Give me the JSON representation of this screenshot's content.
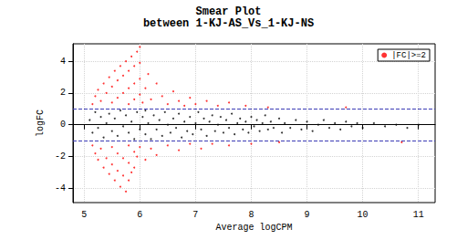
{
  "chart_data": {
    "type": "scatter",
    "title": "Smear Plot",
    "subtitle": "between 1-KJ-AS_Vs_1-KJ-NS",
    "x_label": "Average logCPM",
    "y_label": "logFC",
    "xlim": [
      4.8,
      11.3
    ],
    "ylim": [
      -4.9,
      5.1
    ],
    "xticks": [
      5,
      6,
      7,
      8,
      9,
      10,
      11
    ],
    "yticks": [
      -4,
      -2,
      0,
      2,
      4
    ],
    "grid": true,
    "legend": "top-right",
    "hlines": [
      -1,
      1
    ],
    "series": [
      {
        "color": "#000000",
        "marker": "circle",
        "values": [
          [
            5.1,
            0.3
          ],
          [
            5.15,
            -0.5
          ],
          [
            5.2,
            0.8
          ],
          [
            5.25,
            -0.2
          ],
          [
            5.3,
            0.5
          ],
          [
            5.35,
            -0.8
          ],
          [
            5.4,
            0.1
          ],
          [
            5.45,
            0.7
          ],
          [
            5.5,
            -0.4
          ],
          [
            5.55,
            0.4
          ],
          [
            5.6,
            -0.7
          ],
          [
            5.65,
            0.9
          ],
          [
            5.7,
            -0.1
          ],
          [
            5.75,
            0.6
          ],
          [
            5.8,
            -0.5
          ],
          [
            5.85,
            0.2
          ],
          [
            5.9,
            -0.9
          ],
          [
            5.95,
            0.8
          ],
          [
            6.0,
            -0.3
          ],
          [
            6.05,
            0.5
          ],
          [
            6.1,
            -0.6
          ],
          [
            6.1,
            0.9
          ],
          [
            6.15,
            0.1
          ],
          [
            6.2,
            -0.9
          ],
          [
            6.25,
            0.6
          ],
          [
            6.3,
            -0.3
          ],
          [
            6.35,
            0.3
          ],
          [
            6.4,
            -0.7
          ],
          [
            6.45,
            0.8
          ],
          [
            6.5,
            0.0
          ],
          [
            6.55,
            -0.5
          ],
          [
            6.6,
            0.4
          ],
          [
            6.65,
            -0.2
          ],
          [
            6.7,
            0.7
          ],
          [
            6.75,
            -0.8
          ],
          [
            6.8,
            0.2
          ],
          [
            6.85,
            -0.4
          ],
          [
            6.9,
            0.5
          ],
          [
            6.95,
            -0.6
          ],
          [
            7.0,
            0.1
          ],
          [
            7.05,
            0.8
          ],
          [
            7.1,
            -0.3
          ],
          [
            7.15,
            0.4
          ],
          [
            7.2,
            -0.7
          ],
          [
            7.25,
            0.2
          ],
          [
            7.3,
            0.6
          ],
          [
            7.35,
            -0.4
          ],
          [
            7.4,
            0.0
          ],
          [
            7.45,
            0.5
          ],
          [
            7.5,
            -0.5
          ],
          [
            7.55,
            0.3
          ],
          [
            7.6,
            -0.2
          ],
          [
            7.65,
            0.7
          ],
          [
            7.7,
            -0.6
          ],
          [
            7.75,
            0.1
          ],
          [
            7.8,
            0.4
          ],
          [
            7.85,
            -0.3
          ],
          [
            7.9,
            0.2
          ],
          [
            7.95,
            -0.5
          ],
          [
            8.0,
            0.5
          ],
          [
            8.05,
            -0.1
          ],
          [
            8.1,
            0.3
          ],
          [
            8.15,
            -0.4
          ],
          [
            8.2,
            0.1
          ],
          [
            8.25,
            0.6
          ],
          [
            8.3,
            -0.3
          ],
          [
            8.35,
            0.2
          ],
          [
            8.4,
            -0.2
          ],
          [
            8.5,
            0.4
          ],
          [
            8.55,
            -0.5
          ],
          [
            8.6,
            0.1
          ],
          [
            8.7,
            -0.2
          ],
          [
            8.8,
            0.3
          ],
          [
            8.9,
            -0.3
          ],
          [
            9.0,
            0.2
          ],
          [
            9.1,
            -0.4
          ],
          [
            9.2,
            0.0
          ],
          [
            9.3,
            0.3
          ],
          [
            9.4,
            -0.2
          ],
          [
            9.5,
            0.1
          ],
          [
            9.6,
            -0.3
          ],
          [
            9.7,
            0.2
          ],
          [
            9.8,
            -0.1
          ],
          [
            9.9,
            0.1
          ],
          [
            10.0,
            -0.2
          ],
          [
            10.2,
            0.1
          ],
          [
            10.4,
            -0.1
          ],
          [
            10.6,
            0.0
          ],
          [
            10.8,
            -0.2
          ],
          [
            11.0,
            0.0
          ]
        ]
      },
      {
        "name": "|FC|>=2",
        "color": "#ff0000",
        "marker": "circle",
        "values": [
          [
            5.15,
            1.3
          ],
          [
            5.2,
            1.8
          ],
          [
            5.25,
            2.2
          ],
          [
            5.3,
            1.5
          ],
          [
            5.35,
            2.6
          ],
          [
            5.4,
            2.0
          ],
          [
            5.45,
            3.0
          ],
          [
            5.5,
            2.4
          ],
          [
            5.5,
            1.4
          ],
          [
            5.55,
            3.4
          ],
          [
            5.6,
            2.8
          ],
          [
            5.6,
            1.7
          ],
          [
            5.65,
            3.7
          ],
          [
            5.7,
            3.1
          ],
          [
            5.7,
            2.0
          ],
          [
            5.75,
            4.0
          ],
          [
            5.8,
            3.4
          ],
          [
            5.8,
            2.3
          ],
          [
            5.8,
            1.3
          ],
          [
            5.85,
            4.3
          ],
          [
            5.9,
            3.7
          ],
          [
            5.9,
            2.6
          ],
          [
            5.9,
            1.6
          ],
          [
            5.95,
            4.6
          ],
          [
            6.0,
            4.9
          ],
          [
            6.0,
            3.9
          ],
          [
            6.0,
            2.9
          ],
          [
            6.0,
            1.9
          ],
          [
            6.05,
            1.4
          ],
          [
            6.1,
            2.3
          ],
          [
            6.15,
            3.2
          ],
          [
            6.2,
            1.6
          ],
          [
            6.3,
            2.6
          ],
          [
            6.4,
            1.8
          ],
          [
            6.5,
            1.3
          ],
          [
            6.6,
            2.1
          ],
          [
            6.7,
            1.5
          ],
          [
            6.8,
            1.2
          ],
          [
            6.9,
            1.7
          ],
          [
            7.0,
            1.3
          ],
          [
            7.2,
            1.5
          ],
          [
            7.4,
            1.2
          ],
          [
            7.6,
            1.4
          ],
          [
            7.9,
            1.2
          ],
          [
            8.3,
            1.1
          ],
          [
            9.7,
            1.1
          ],
          [
            5.15,
            -1.3
          ],
          [
            5.2,
            -1.8
          ],
          [
            5.25,
            -2.2
          ],
          [
            5.3,
            -1.5
          ],
          [
            5.35,
            -2.7
          ],
          [
            5.4,
            -2.1
          ],
          [
            5.45,
            -3.1
          ],
          [
            5.5,
            -2.5
          ],
          [
            5.5,
            -1.4
          ],
          [
            5.55,
            -3.5
          ],
          [
            5.6,
            -2.9
          ],
          [
            5.6,
            -1.8
          ],
          [
            5.65,
            -3.9
          ],
          [
            5.7,
            -3.2
          ],
          [
            5.7,
            -2.1
          ],
          [
            5.75,
            -4.2
          ],
          [
            5.8,
            -3.5
          ],
          [
            5.8,
            -2.4
          ],
          [
            5.8,
            -1.3
          ],
          [
            5.85,
            -3.0
          ],
          [
            5.9,
            -2.7
          ],
          [
            5.9,
            -1.7
          ],
          [
            5.95,
            -2.0
          ],
          [
            6.0,
            -1.4
          ],
          [
            6.1,
            -2.2
          ],
          [
            6.2,
            -1.5
          ],
          [
            6.3,
            -1.9
          ],
          [
            6.5,
            -1.3
          ],
          [
            6.7,
            -1.6
          ],
          [
            6.9,
            -1.2
          ],
          [
            7.1,
            -1.5
          ],
          [
            7.3,
            -1.2
          ],
          [
            7.6,
            -1.3
          ],
          [
            8.0,
            -1.2
          ],
          [
            8.5,
            -1.1
          ],
          [
            10.7,
            -1.1
          ]
        ]
      }
    ]
  }
}
